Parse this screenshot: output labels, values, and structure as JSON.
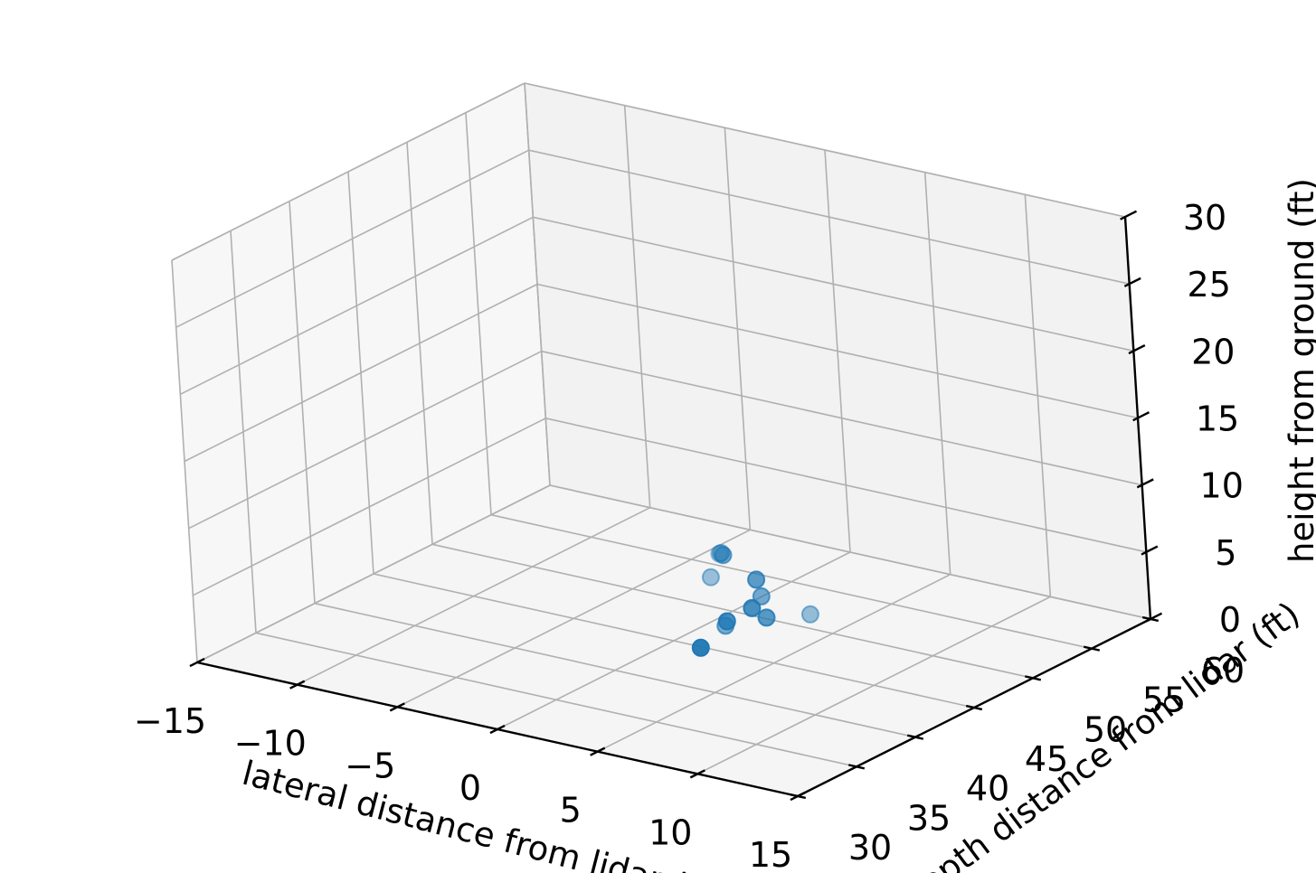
{
  "chart_data": {
    "type": "scatter",
    "projection": "3d",
    "xlabel": "lateral distance from lidar (ft)",
    "ylabel": "depth distance from lidar (ft)",
    "zlabel": "height from ground (ft)",
    "xlim": [
      -15,
      15
    ],
    "ylim": [
      30,
      60
    ],
    "zlim": [
      0,
      30
    ],
    "xticks": [
      "−15",
      "−10",
      "−5",
      "0",
      "5",
      "10",
      "15"
    ],
    "yticks": [
      "30",
      "35",
      "40",
      "45",
      "50",
      "55",
      "60"
    ],
    "zticks": [
      "0",
      "5",
      "10",
      "15",
      "20",
      "25",
      "30"
    ],
    "grid": true,
    "marker_color": "#1f77b4",
    "points": [
      {
        "x": 4.0,
        "y": 43.0,
        "z": 8.6
      },
      {
        "x": 3.6,
        "y": 43.5,
        "z": 8.4
      },
      {
        "x": 3.2,
        "y": 44.0,
        "z": 8.0
      },
      {
        "x": 5.6,
        "y": 43.0,
        "z": 7.3
      },
      {
        "x": 3.0,
        "y": 43.5,
        "z": 6.4
      },
      {
        "x": 5.5,
        "y": 43.5,
        "z": 5.8
      },
      {
        "x": 5.6,
        "y": 42.5,
        "z": 5.4
      },
      {
        "x": 6.0,
        "y": 43.0,
        "z": 4.6
      },
      {
        "x": 4.6,
        "y": 42.0,
        "z": 4.3
      },
      {
        "x": 7.0,
        "y": 45.0,
        "z": 4.3
      },
      {
        "x": 3.9,
        "y": 43.0,
        "z": 3.3
      },
      {
        "x": 3.8,
        "y": 41.0,
        "z": 2.5
      }
    ]
  }
}
